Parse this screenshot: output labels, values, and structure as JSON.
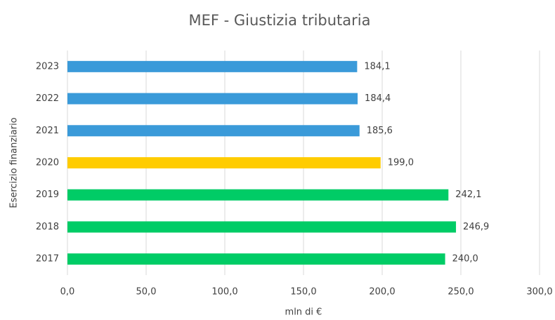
{
  "chart_data": {
    "type": "bar",
    "orientation": "horizontal",
    "title": "MEF - Giustizia tributaria",
    "x_label": "mln di €",
    "y_label": "Esercizio finanziario",
    "categories": [
      "2023",
      "2022",
      "2021",
      "2020",
      "2019",
      "2018",
      "2017"
    ],
    "values": [
      184.1,
      184.4,
      185.6,
      199.0,
      242.1,
      246.9,
      240.0
    ],
    "value_labels": [
      "184,1",
      "184,4",
      "185,6",
      "199,0",
      "242,1",
      "246,9",
      "240,0"
    ],
    "colors": [
      "#3a9ad9",
      "#3a9ad9",
      "#3a9ad9",
      "#ffcc00",
      "#00cc66",
      "#00cc66",
      "#00cc66"
    ],
    "xlim": [
      0,
      300
    ],
    "xticks": [
      {
        "value": 0,
        "label": "0,0"
      },
      {
        "value": 50,
        "label": "50,0"
      },
      {
        "value": 100,
        "label": "100,0"
      },
      {
        "value": 150,
        "label": "150,0"
      },
      {
        "value": 200,
        "label": "200,0"
      },
      {
        "value": 250,
        "label": "250,0"
      },
      {
        "value": 300,
        "label": "300,0"
      }
    ],
    "grid": true
  }
}
